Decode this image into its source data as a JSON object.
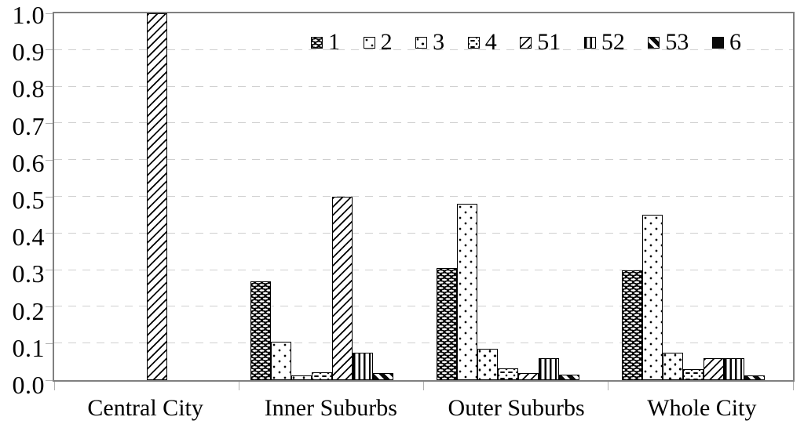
{
  "chart_data": {
    "type": "bar",
    "title": "",
    "xlabel": "",
    "ylabel": "",
    "categories": [
      "Central City",
      "Inner Suburbs",
      "Outer Suburbs",
      "Whole City"
    ],
    "series": [
      {
        "name": "1",
        "pattern": "black-white-dashes",
        "values": [
          0,
          0.27,
          0.305,
          0.3
        ]
      },
      {
        "name": "2",
        "pattern": "sparse-dots",
        "values": [
          0,
          0.105,
          0.48,
          0.45
        ]
      },
      {
        "name": "3",
        "pattern": "sparse-specks",
        "values": [
          0,
          0.012,
          0.085,
          0.075
        ]
      },
      {
        "name": "4",
        "pattern": "dash-dot-scatter",
        "values": [
          0,
          0.022,
          0.032,
          0.03
        ]
      },
      {
        "name": "51",
        "pattern": "thin-diagonal-up",
        "values": [
          1.0,
          0.5,
          0.02,
          0.06
        ]
      },
      {
        "name": "52",
        "pattern": "vertical-lines",
        "values": [
          0,
          0.075,
          0.06,
          0.06
        ]
      },
      {
        "name": "53",
        "pattern": "bold-diagonal-down",
        "values": [
          0,
          0.02,
          0.015,
          0.012
        ]
      },
      {
        "name": "6",
        "pattern": "solid-black",
        "values": [
          0,
          0,
          0,
          0
        ]
      }
    ],
    "ylim": [
      0.0,
      1.0
    ],
    "ytick_labels": [
      "1.0",
      "0.9",
      "0.8",
      "0.7",
      "0.6",
      "0.5",
      "0.4",
      "0.3",
      "0.2",
      "0.1",
      "0.0"
    ],
    "grid": "horizontal-dashed",
    "legend_position": "top-center-inside",
    "colors": {
      "bar_ink": "#000000",
      "plot_border": "#808080",
      "gridline": "#cfcfcf",
      "tick": "#b0b0b0",
      "background": "#ffffff"
    }
  }
}
